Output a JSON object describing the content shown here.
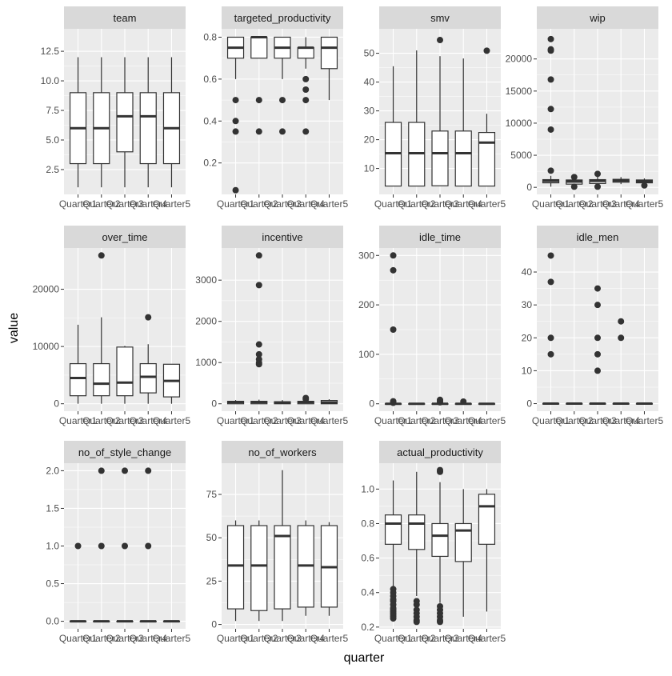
{
  "chart_data": {
    "type": "boxplot",
    "xlabel": "quarter",
    "ylabel": "value",
    "categories": [
      "Quarter1",
      "Quarter2",
      "Quarter3",
      "Quarter4",
      "Quarter5"
    ],
    "colors": {
      "panel_bg": "#ebebeb",
      "strip_bg": "#d9d9d9",
      "grid_major": "#ffffff",
      "box_fill": "#ffffff",
      "box_line": "#333333"
    },
    "panels": [
      {
        "title": "team",
        "ylim": [
          0.4,
          14.4
        ],
        "yticks": [
          2.5,
          5.0,
          7.5,
          10.0,
          12.5
        ],
        "ytick_labels": [
          "2.5",
          "5.0",
          "7.5",
          "10.0",
          "12.5"
        ],
        "boxes": [
          {
            "whisker_low": 1,
            "q1": 3,
            "median": 6,
            "q3": 9,
            "whisker_high": 12,
            "outliers": []
          },
          {
            "whisker_low": 1,
            "q1": 3,
            "median": 6,
            "q3": 9,
            "whisker_high": 12,
            "outliers": []
          },
          {
            "whisker_low": 1,
            "q1": 4,
            "median": 7,
            "q3": 9,
            "whisker_high": 12,
            "outliers": []
          },
          {
            "whisker_low": 1,
            "q1": 3,
            "median": 7,
            "q3": 9,
            "whisker_high": 12,
            "outliers": []
          },
          {
            "whisker_low": 1,
            "q1": 3,
            "median": 6,
            "q3": 9,
            "whisker_high": 12,
            "outliers": []
          }
        ]
      },
      {
        "title": "targeted_productivity",
        "ylim": [
          0.05,
          0.84
        ],
        "yticks": [
          0.2,
          0.4,
          0.6,
          0.8
        ],
        "ytick_labels": [
          "0.2",
          "0.4",
          "0.6",
          "0.8"
        ],
        "boxes": [
          {
            "whisker_low": 0.6,
            "q1": 0.7,
            "median": 0.75,
            "q3": 0.8,
            "whisker_high": 0.8,
            "outliers": [
              0.5,
              0.4,
              0.35,
              0.07
            ]
          },
          {
            "whisker_low": 0.7,
            "q1": 0.7,
            "median": 0.8,
            "q3": 0.8,
            "whisker_high": 0.8,
            "outliers": [
              0.5,
              0.35
            ]
          },
          {
            "whisker_low": 0.6,
            "q1": 0.7,
            "median": 0.75,
            "q3": 0.8,
            "whisker_high": 0.8,
            "outliers": [
              0.5,
              0.35
            ]
          },
          {
            "whisker_low": 0.65,
            "q1": 0.7,
            "median": 0.75,
            "q3": 0.75,
            "whisker_high": 0.8,
            "outliers": [
              0.6,
              0.55,
              0.5,
              0.35
            ]
          },
          {
            "whisker_low": 0.5,
            "q1": 0.65,
            "median": 0.75,
            "q3": 0.8,
            "whisker_high": 0.8,
            "outliers": []
          }
        ]
      },
      {
        "title": "smv",
        "ylim": [
          1.0,
          58.5
        ],
        "yticks": [
          10,
          20,
          30,
          40,
          50
        ],
        "ytick_labels": [
          "10",
          "20",
          "30",
          "40",
          "50"
        ],
        "boxes": [
          {
            "whisker_low": 3.9,
            "q1": 3.9,
            "median": 15.3,
            "q3": 26.0,
            "whisker_high": 45.5,
            "outliers": []
          },
          {
            "whisker_low": 3.9,
            "q1": 3.9,
            "median": 15.3,
            "q3": 26.0,
            "whisker_high": 51.0,
            "outliers": []
          },
          {
            "whisker_low": 3.9,
            "q1": 4.0,
            "median": 15.3,
            "q3": 23.0,
            "whisker_high": 49.0,
            "outliers": [
              54.6
            ]
          },
          {
            "whisker_low": 3.9,
            "q1": 3.9,
            "median": 15.3,
            "q3": 23.0,
            "whisker_high": 48.2,
            "outliers": []
          },
          {
            "whisker_low": 3.9,
            "q1": 3.9,
            "median": 19.0,
            "q3": 22.5,
            "whisker_high": 29.0,
            "outliers": [
              50.9
            ]
          }
        ]
      },
      {
        "title": "wip",
        "ylim": [
          -1100,
          24700
        ],
        "yticks": [
          0,
          5000,
          10000,
          15000,
          20000
        ],
        "ytick_labels": [
          "0",
          "5000",
          "10000",
          "15000",
          "20000"
        ],
        "boxes": [
          {
            "whisker_low": 100,
            "q1": 700,
            "median": 1000,
            "q3": 1200,
            "whisker_high": 1800,
            "outliers": [
              2600,
              9000,
              12200,
              16800,
              21300,
              21500,
              23100
            ]
          },
          {
            "whisker_low": 100,
            "q1": 500,
            "median": 900,
            "q3": 1150,
            "whisker_high": 1600,
            "outliers": [
              1600,
              100
            ]
          },
          {
            "whisker_low": 100,
            "q1": 600,
            "median": 1000,
            "q3": 1200,
            "whisker_high": 2000,
            "outliers": [
              2100,
              100
            ]
          },
          {
            "whisker_low": 500,
            "q1": 800,
            "median": 1050,
            "q3": 1250,
            "whisker_high": 1600,
            "outliers": []
          },
          {
            "whisker_low": 500,
            "q1": 700,
            "median": 950,
            "q3": 1150,
            "whisker_high": 1400,
            "outliers": [
              300
            ]
          }
        ]
      },
      {
        "title": "over_time",
        "ylim": [
          -1300,
          27200
        ],
        "yticks": [
          0,
          10000,
          20000
        ],
        "ytick_labels": [
          "0",
          "10000",
          "20000"
        ],
        "boxes": [
          {
            "whisker_low": 0,
            "q1": 1400,
            "median": 4500,
            "q3": 7000,
            "whisker_high": 13800,
            "outliers": []
          },
          {
            "whisker_low": 0,
            "q1": 1400,
            "median": 3500,
            "q3": 7000,
            "whisker_high": 15100,
            "outliers": [
              25900
            ]
          },
          {
            "whisker_low": 0,
            "q1": 1400,
            "median": 3700,
            "q3": 9900,
            "whisker_high": 10100,
            "outliers": []
          },
          {
            "whisker_low": 0,
            "q1": 1900,
            "median": 4700,
            "q3": 7000,
            "whisker_high": 10400,
            "outliers": [
              15100
            ]
          },
          {
            "whisker_low": 0,
            "q1": 1200,
            "median": 4000,
            "q3": 6900,
            "whisker_high": 6900,
            "outliers": []
          }
        ]
      },
      {
        "title": "incentive",
        "ylim": [
          -180,
          3780
        ],
        "yticks": [
          0,
          1000,
          2000,
          3000
        ],
        "ytick_labels": [
          "0",
          "1000",
          "2000",
          "3000"
        ],
        "boxes": [
          {
            "whisker_low": 0,
            "q1": 0,
            "median": 40,
            "q3": 60,
            "whisker_high": 90,
            "outliers": []
          },
          {
            "whisker_low": 0,
            "q1": 0,
            "median": 40,
            "q3": 60,
            "whisker_high": 100,
            "outliers": [
              960,
              1000,
              1080,
              1200,
              1440,
              2880,
              3600
            ]
          },
          {
            "whisker_low": 0,
            "q1": 0,
            "median": 30,
            "q3": 50,
            "whisker_high": 90,
            "outliers": []
          },
          {
            "whisker_low": 0,
            "q1": 0,
            "median": 40,
            "q3": 60,
            "whisker_high": 100,
            "outliers": [
              110,
              140
            ]
          },
          {
            "whisker_low": 0,
            "q1": 0,
            "median": 30,
            "q3": 80,
            "whisker_high": 110,
            "outliers": []
          }
        ]
      },
      {
        "title": "idle_time",
        "ylim": [
          -15,
          315
        ],
        "yticks": [
          0,
          100,
          200,
          300
        ],
        "ytick_labels": [
          "0",
          "100",
          "200",
          "300"
        ],
        "boxes": [
          {
            "whisker_low": 0,
            "q1": 0,
            "median": 0,
            "q3": 0,
            "whisker_high": 0,
            "outliers": [
              2,
              5,
              150,
              270,
              300
            ]
          },
          {
            "whisker_low": 0,
            "q1": 0,
            "median": 0,
            "q3": 0,
            "whisker_high": 0,
            "outliers": []
          },
          {
            "whisker_low": 0,
            "q1": 0,
            "median": 0,
            "q3": 0,
            "whisker_high": 0,
            "outliers": [
              3,
              6,
              8
            ]
          },
          {
            "whisker_low": 0,
            "q1": 0,
            "median": 0,
            "q3": 0,
            "whisker_high": 0,
            "outliers": [
              4.5
            ]
          },
          {
            "whisker_low": 0,
            "q1": 0,
            "median": 0,
            "q3": 0,
            "whisker_high": 0,
            "outliers": []
          }
        ]
      },
      {
        "title": "idle_men",
        "ylim": [
          -2.3,
          47.3
        ],
        "yticks": [
          0,
          10,
          20,
          30,
          40
        ],
        "ytick_labels": [
          "0",
          "10",
          "20",
          "30",
          "40"
        ],
        "boxes": [
          {
            "whisker_low": 0,
            "q1": 0,
            "median": 0,
            "q3": 0,
            "whisker_high": 0,
            "outliers": [
              15,
              20,
              37,
              45
            ]
          },
          {
            "whisker_low": 0,
            "q1": 0,
            "median": 0,
            "q3": 0,
            "whisker_high": 0,
            "outliers": []
          },
          {
            "whisker_low": 0,
            "q1": 0,
            "median": 0,
            "q3": 0,
            "whisker_high": 0,
            "outliers": [
              10,
              15,
              20,
              30,
              35
            ]
          },
          {
            "whisker_low": 0,
            "q1": 0,
            "median": 0,
            "q3": 0,
            "whisker_high": 0,
            "outliers": [
              20,
              25
            ]
          },
          {
            "whisker_low": 0,
            "q1": 0,
            "median": 0,
            "q3": 0,
            "whisker_high": 0,
            "outliers": []
          }
        ]
      },
      {
        "title": "no_of_style_change",
        "ylim": [
          -0.1,
          2.1
        ],
        "yticks": [
          0.0,
          0.5,
          1.0,
          1.5,
          2.0
        ],
        "ytick_labels": [
          "0.0",
          "0.5",
          "1.0",
          "1.5",
          "2.0"
        ],
        "boxes": [
          {
            "whisker_low": 0,
            "q1": 0,
            "median": 0,
            "q3": 0,
            "whisker_high": 0,
            "outliers": [
              1
            ]
          },
          {
            "whisker_low": 0,
            "q1": 0,
            "median": 0,
            "q3": 0,
            "whisker_high": 0,
            "outliers": [
              1,
              2
            ]
          },
          {
            "whisker_low": 0,
            "q1": 0,
            "median": 0,
            "q3": 0,
            "whisker_high": 0,
            "outliers": [
              1,
              2
            ]
          },
          {
            "whisker_low": 0,
            "q1": 0,
            "median": 0,
            "q3": 0,
            "whisker_high": 0,
            "outliers": [
              1,
              2
            ]
          },
          {
            "whisker_low": 0,
            "q1": 0,
            "median": 0,
            "q3": 0,
            "whisker_high": 0,
            "outliers": []
          }
        ]
      },
      {
        "title": "no_of_workers",
        "ylim": [
          -2.5,
          93.0
        ],
        "yticks": [
          0,
          25,
          50,
          75
        ],
        "ytick_labels": [
          "0",
          "25",
          "50",
          "75"
        ],
        "boxes": [
          {
            "whisker_low": 2,
            "q1": 9,
            "median": 34,
            "q3": 57,
            "whisker_high": 60,
            "outliers": []
          },
          {
            "whisker_low": 2,
            "q1": 8,
            "median": 34,
            "q3": 57,
            "whisker_high": 60,
            "outliers": []
          },
          {
            "whisker_low": 2,
            "q1": 9,
            "median": 51,
            "q3": 57,
            "whisker_high": 89,
            "outliers": []
          },
          {
            "whisker_low": 5,
            "q1": 10,
            "median": 34,
            "q3": 57,
            "whisker_high": 60,
            "outliers": []
          },
          {
            "whisker_low": 5,
            "q1": 10,
            "median": 33,
            "q3": 57,
            "whisker_high": 59,
            "outliers": []
          }
        ]
      },
      {
        "title": "actual_productivity",
        "ylim": [
          0.19,
          1.15
        ],
        "yticks": [
          0.2,
          0.4,
          0.6,
          0.8,
          1.0
        ],
        "ytick_labels": [
          "0.2",
          "0.4",
          "0.6",
          "0.8",
          "1.0"
        ],
        "boxes": [
          {
            "whisker_low": 0.43,
            "q1": 0.68,
            "median": 0.8,
            "q3": 0.85,
            "whisker_high": 1.05,
            "outliers": [
              0.42,
              0.4,
              0.38,
              0.36,
              0.35,
              0.33,
              0.31,
              0.3,
              0.29,
              0.28,
              0.27,
              0.26,
              0.25
            ]
          },
          {
            "whisker_low": 0.38,
            "q1": 0.65,
            "median": 0.8,
            "q3": 0.85,
            "whisker_high": 1.1,
            "outliers": [
              0.35,
              0.33,
              0.3,
              0.28,
              0.26,
              0.24,
              0.23
            ]
          },
          {
            "whisker_low": 0.34,
            "q1": 0.61,
            "median": 0.73,
            "q3": 0.8,
            "whisker_high": 1.04,
            "outliers": [
              1.1,
              1.11,
              0.32,
              0.3,
              0.28,
              0.26,
              0.24,
              0.23
            ]
          },
          {
            "whisker_low": 0.26,
            "q1": 0.58,
            "median": 0.76,
            "q3": 0.8,
            "whisker_high": 1.0,
            "outliers": []
          },
          {
            "whisker_low": 0.29,
            "q1": 0.68,
            "median": 0.9,
            "q3": 0.97,
            "whisker_high": 1.0,
            "outliers": []
          }
        ]
      }
    ]
  }
}
